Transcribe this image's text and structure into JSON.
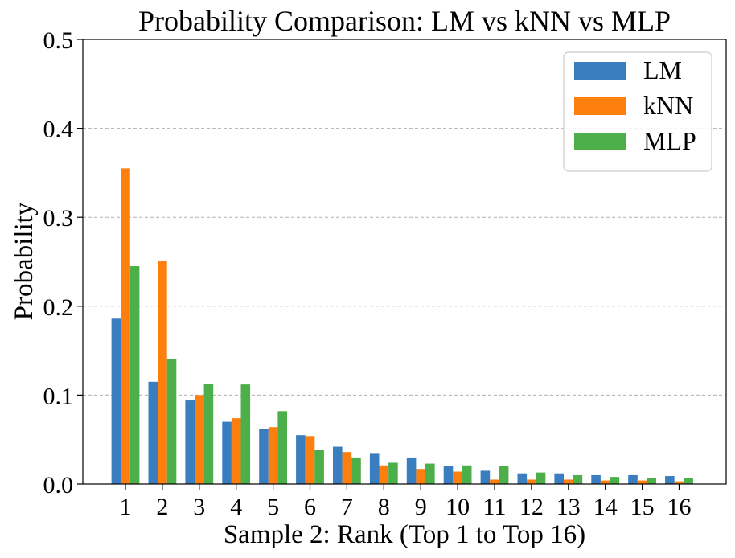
{
  "chart_data": {
    "type": "bar",
    "title": "Probability Comparison: LM vs kNN vs MLP",
    "xlabel": "Sample 2: Rank (Top 1 to Top 16)",
    "ylabel": "Probability",
    "ylim": [
      0,
      0.5
    ],
    "yticks": [
      "0.0",
      "0.1",
      "0.2",
      "0.3",
      "0.4",
      "0.5"
    ],
    "grid": "horizontal-dashed",
    "legend_position": "top-right",
    "categories": [
      "1",
      "2",
      "3",
      "4",
      "5",
      "6",
      "7",
      "8",
      "9",
      "10",
      "11",
      "12",
      "13",
      "14",
      "15",
      "16"
    ],
    "series": [
      {
        "name": "LM",
        "color": "#3a7ebf",
        "values": [
          0.186,
          0.115,
          0.094,
          0.07,
          0.062,
          0.055,
          0.042,
          0.034,
          0.029,
          0.02,
          0.015,
          0.012,
          0.012,
          0.01,
          0.01,
          0.009
        ]
      },
      {
        "name": "kNN",
        "color": "#ff7f0e",
        "values": [
          0.355,
          0.251,
          0.1,
          0.074,
          0.064,
          0.054,
          0.036,
          0.021,
          0.017,
          0.014,
          0.005,
          0.005,
          0.005,
          0.004,
          0.004,
          0.003
        ]
      },
      {
        "name": "MLP",
        "color": "#4daf4a",
        "values": [
          0.245,
          0.141,
          0.113,
          0.112,
          0.082,
          0.038,
          0.029,
          0.024,
          0.023,
          0.021,
          0.02,
          0.013,
          0.01,
          0.008,
          0.007,
          0.007
        ]
      }
    ]
  }
}
